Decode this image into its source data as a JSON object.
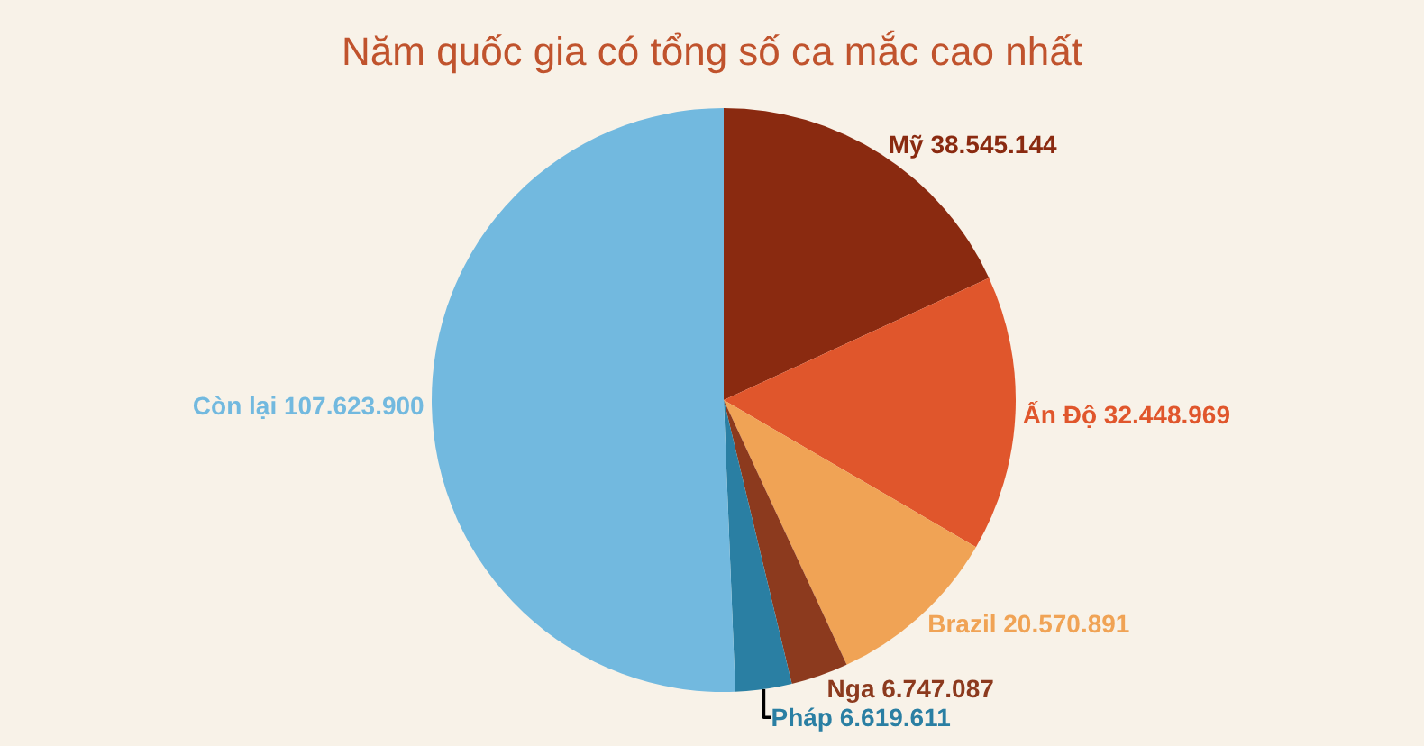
{
  "chart_data": {
    "type": "pie",
    "title": "Năm quốc gia có tổng số ca mắc cao nhất",
    "categories": [
      "Mỹ",
      "Ấn Độ",
      "Brazil",
      "Nga",
      "Pháp",
      "Còn lại"
    ],
    "values": [
      38545144,
      32448969,
      20570891,
      6747087,
      6619611,
      107623900
    ],
    "value_labels": [
      "38.545.144",
      "32.448.969",
      "20.570.891",
      "6.747.087",
      "6.619.611",
      "107.623.900"
    ],
    "colors": [
      "#8a2a10",
      "#e0562c",
      "#f0a355",
      "#8c3a1e",
      "#2a7fa3",
      "#72b9df"
    ],
    "legend": false
  }
}
